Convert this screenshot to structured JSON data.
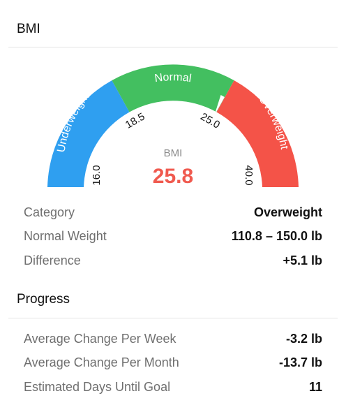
{
  "bmi_section": {
    "title": "BMI"
  },
  "gauge": {
    "center_label": "BMI",
    "value": "25.8",
    "value_number": 25.8,
    "zones": [
      {
        "label": "Underweight",
        "color": "#2f9ff0"
      },
      {
        "label": "Normal",
        "color": "#43bf60"
      },
      {
        "label": "Overweight",
        "color": "#f45348"
      }
    ],
    "ticks": [
      "16.0",
      "18.5",
      "25.0",
      "40.0"
    ],
    "value_color": "#f05a4f",
    "label_color": "#8a8a8a"
  },
  "details": [
    {
      "label": "Category",
      "value": "Overweight"
    },
    {
      "label": "Normal Weight",
      "value": "110.8 – 150.0 lb"
    },
    {
      "label": "Difference",
      "value": "+5.1 lb"
    }
  ],
  "progress_section": {
    "title": "Progress"
  },
  "progress": [
    {
      "label": "Average Change Per Week",
      "value": "-3.2 lb"
    },
    {
      "label": "Average Change Per Month",
      "value": "-13.7 lb"
    },
    {
      "label": "Estimated Days Until Goal",
      "value": "11"
    }
  ]
}
